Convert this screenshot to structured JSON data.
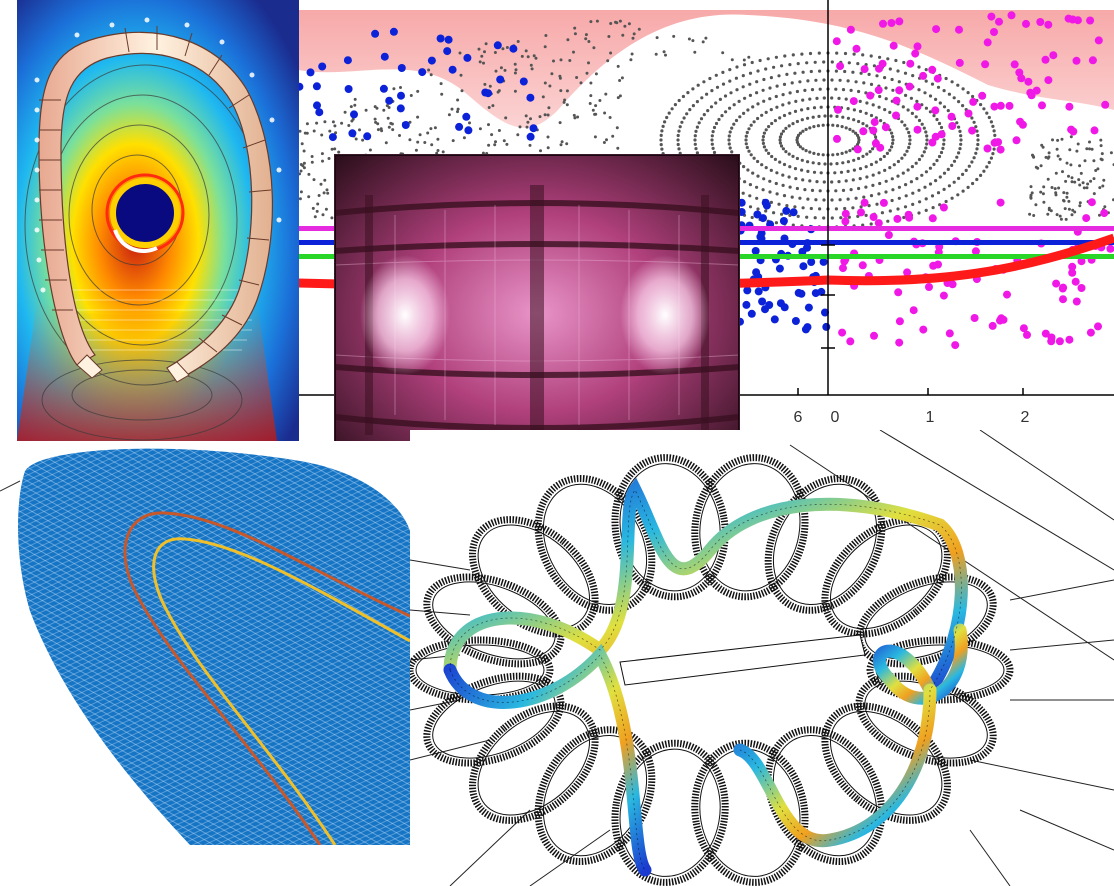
{
  "plot": {
    "tick_labels": [
      "6",
      "0",
      "1",
      "2"
    ]
  },
  "colors": {
    "field_blue": "#1b2c8f",
    "field_red": "#c81e10",
    "mesh_blue": "#1674c4",
    "island_gray": "#555555",
    "scatter_blue": "#0b22d8",
    "scatter_magenta": "#f018e6",
    "line_red": "#ff1a1a",
    "line_green": "#28d628",
    "line_magenta": "#e62ae0",
    "plasma_pink": "#b0407c"
  },
  "icons": [
    "tokamak-cross-section",
    "poincare-plot",
    "vessel-photo",
    "mesh-surface",
    "coil-wireframe"
  ]
}
